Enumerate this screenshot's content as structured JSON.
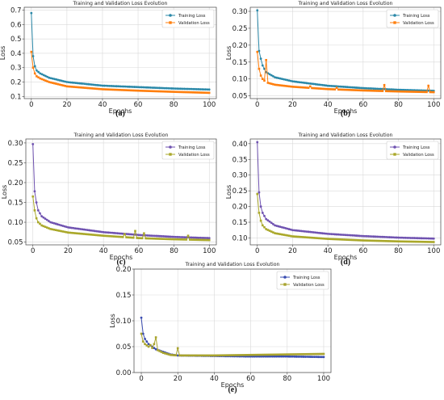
{
  "colors": {
    "train_blue": "#1f77b4",
    "train_teal": "#2a88a8",
    "val_orange": "#ff7f0e",
    "train_purple": "#6f52b0",
    "val_olive": "#aaa82a",
    "train_navy": "#3a4cb0",
    "val_olive2": "#a8a32e",
    "grid": "#d9d9d9"
  },
  "chart_data": [
    {
      "id": "a",
      "type": "line",
      "caption": "(a)",
      "title": "Training and Validation Loss Evolution",
      "xlabel": "Epochs",
      "ylabel": "Loss",
      "xlim": [
        -4,
        104
      ],
      "ylim": [
        0.085,
        0.72
      ],
      "xticks": [
        0,
        20,
        40,
        60,
        80,
        100
      ],
      "yticks": [
        0.1,
        0.2,
        0.3,
        0.4,
        0.5,
        0.6,
        0.7
      ],
      "yticklabels": [
        "0.1",
        "0.2",
        "0.3",
        "0.4",
        "0.5",
        "0.6",
        "0.7"
      ],
      "grid": true,
      "legend": "top-right",
      "series": [
        {
          "name": "Training Loss",
          "color": "#2a88a8",
          "marker": "circle",
          "points": [
            [
              0,
              0.68
            ],
            [
              1,
              0.38
            ],
            [
              2,
              0.31
            ],
            [
              3,
              0.28
            ],
            [
              5,
              0.26
            ],
            [
              10,
              0.23
            ],
            [
              20,
              0.2
            ],
            [
              40,
              0.175
            ],
            [
              60,
              0.165
            ],
            [
              80,
              0.155
            ],
            [
              100,
              0.148
            ]
          ]
        },
        {
          "name": "Validation Loss",
          "color": "#ff7f0e",
          "marker": "square",
          "points": [
            [
              0,
              0.41
            ],
            [
              1,
              0.3
            ],
            [
              2,
              0.26
            ],
            [
              3,
              0.24
            ],
            [
              5,
              0.225
            ],
            [
              10,
              0.2
            ],
            [
              20,
              0.17
            ],
            [
              40,
              0.15
            ],
            [
              60,
              0.14
            ],
            [
              80,
              0.132
            ],
            [
              100,
              0.125
            ]
          ]
        }
      ]
    },
    {
      "id": "b",
      "type": "line",
      "caption": "(b)",
      "title": "Training and Validation Loss Evolution",
      "xlabel": "Epochs",
      "ylabel": "Loss",
      "xlim": [
        -4,
        104
      ],
      "ylim": [
        0.042,
        0.312
      ],
      "xticks": [
        0,
        20,
        40,
        60,
        80,
        100
      ],
      "yticks": [
        0.05,
        0.1,
        0.15,
        0.2,
        0.25,
        0.3
      ],
      "yticklabels": [
        "0.05",
        "0.10",
        "0.15",
        "0.20",
        "0.25",
        "0.30"
      ],
      "grid": true,
      "legend": "top-right",
      "series": [
        {
          "name": "Training Loss",
          "color": "#2a88a8",
          "marker": "circle",
          "points": [
            [
              0,
              0.303
            ],
            [
              1,
              0.183
            ],
            [
              2,
              0.16
            ],
            [
              3,
              0.14
            ],
            [
              5,
              0.12
            ],
            [
              10,
              0.105
            ],
            [
              20,
              0.093
            ],
            [
              40,
              0.08
            ],
            [
              60,
              0.073
            ],
            [
              80,
              0.068
            ],
            [
              100,
              0.065
            ]
          ],
          "spikes": []
        },
        {
          "name": "Validation Loss",
          "color": "#ff7f0e",
          "marker": "square",
          "points": [
            [
              0,
              0.18
            ],
            [
              1,
              0.13
            ],
            [
              2,
              0.11
            ],
            [
              3,
              0.1
            ],
            [
              5,
              0.09
            ],
            [
              10,
              0.083
            ],
            [
              20,
              0.077
            ],
            [
              40,
              0.07
            ],
            [
              60,
              0.066
            ],
            [
              80,
              0.063
            ],
            [
              100,
              0.061
            ]
          ],
          "spikes": [
            [
              5,
              0.156
            ],
            [
              72,
              0.082
            ],
            [
              97,
              0.08
            ],
            [
              30,
              0.078
            ],
            [
              45,
              0.074
            ]
          ]
        }
      ]
    },
    {
      "id": "c",
      "type": "line",
      "caption": "(c)",
      "title": "Training and Validation Loss Evolution",
      "xlabel": "Epochs",
      "ylabel": "Loss",
      "xlim": [
        -4,
        104
      ],
      "ylim": [
        0.043,
        0.31
      ],
      "xticks": [
        0,
        20,
        40,
        60,
        80,
        100
      ],
      "yticks": [
        0.05,
        0.1,
        0.15,
        0.2,
        0.25,
        0.3
      ],
      "yticklabels": [
        "0.05",
        "0.10",
        "0.15",
        "0.20",
        "0.25",
        "0.30"
      ],
      "grid": true,
      "legend": "top-right",
      "series": [
        {
          "name": "Training Loss",
          "color": "#6f52b0",
          "marker": "circle",
          "points": [
            [
              0,
              0.297
            ],
            [
              1,
              0.178
            ],
            [
              2,
              0.15
            ],
            [
              3,
              0.13
            ],
            [
              5,
              0.115
            ],
            [
              10,
              0.1
            ],
            [
              20,
              0.087
            ],
            [
              40,
              0.075
            ],
            [
              60,
              0.068
            ],
            [
              80,
              0.063
            ],
            [
              100,
              0.06
            ]
          ],
          "spikes": []
        },
        {
          "name": "Validation Loss",
          "color": "#aaa82a",
          "marker": "square",
          "points": [
            [
              0,
              0.165
            ],
            [
              1,
              0.13
            ],
            [
              2,
              0.11
            ],
            [
              3,
              0.1
            ],
            [
              5,
              0.092
            ],
            [
              10,
              0.083
            ],
            [
              20,
              0.074
            ],
            [
              40,
              0.066
            ],
            [
              60,
              0.06
            ],
            [
              80,
              0.057
            ],
            [
              100,
              0.055
            ]
          ],
          "spikes": [
            [
              58,
              0.078
            ],
            [
              52,
              0.07
            ],
            [
              63,
              0.072
            ],
            [
              88,
              0.066
            ]
          ]
        }
      ]
    },
    {
      "id": "d",
      "type": "line",
      "caption": "(d)",
      "title": "Training and Validation Loss Evolution",
      "xlabel": "Epochs",
      "ylabel": "Loss",
      "xlim": [
        -4,
        104
      ],
      "ylim": [
        0.078,
        0.415
      ],
      "xticks": [
        0,
        20,
        40,
        60,
        80,
        100
      ],
      "yticks": [
        0.1,
        0.15,
        0.2,
        0.25,
        0.3,
        0.35,
        0.4
      ],
      "yticklabels": [
        "0.10",
        "0.15",
        "0.20",
        "0.25",
        "0.30",
        "0.35",
        "0.40"
      ],
      "grid": true,
      "legend": "top-right",
      "series": [
        {
          "name": "Training Loss",
          "color": "#6f52b0",
          "marker": "circle",
          "points": [
            [
              0,
              0.405
            ],
            [
              1,
              0.245
            ],
            [
              2,
              0.2
            ],
            [
              3,
              0.18
            ],
            [
              5,
              0.16
            ],
            [
              10,
              0.14
            ],
            [
              20,
              0.125
            ],
            [
              40,
              0.113
            ],
            [
              60,
              0.106
            ],
            [
              80,
              0.101
            ],
            [
              100,
              0.098
            ]
          ],
          "spikes": []
        },
        {
          "name": "Validation Loss",
          "color": "#aaa82a",
          "marker": "square",
          "points": [
            [
              0,
              0.24
            ],
            [
              1,
              0.18
            ],
            [
              2,
              0.155
            ],
            [
              3,
              0.14
            ],
            [
              5,
              0.128
            ],
            [
              10,
              0.115
            ],
            [
              20,
              0.105
            ],
            [
              40,
              0.097
            ],
            [
              60,
              0.092
            ],
            [
              80,
              0.089
            ],
            [
              100,
              0.087
            ]
          ],
          "spikes": []
        }
      ]
    },
    {
      "id": "e",
      "type": "line",
      "caption": "(e)",
      "title": "Training and Validation Loss Evolution",
      "xlabel": "Epochs",
      "ylabel": "Loss",
      "xlim": [
        -4,
        104
      ],
      "ylim": [
        0.0,
        0.2
      ],
      "xticks": [
        0,
        20,
        40,
        60,
        80,
        100
      ],
      "yticks": [
        0.0,
        0.05,
        0.1,
        0.15,
        0.2
      ],
      "yticklabels": [
        "0.00",
        "0.05",
        "0.10",
        "0.15",
        "0.20"
      ],
      "grid": true,
      "legend": "top-right",
      "series": [
        {
          "name": "Training Loss",
          "color": "#3a4cb0",
          "marker": "circle",
          "points": [
            [
              0,
              0.106
            ],
            [
              1,
              0.075
            ],
            [
              2,
              0.065
            ],
            [
              4,
              0.055
            ],
            [
              8,
              0.045
            ],
            [
              12,
              0.04
            ],
            [
              16,
              0.035
            ],
            [
              20,
              0.033
            ],
            [
              40,
              0.032
            ],
            [
              60,
              0.031
            ],
            [
              80,
              0.031
            ],
            [
              100,
              0.03
            ]
          ],
          "spikes": []
        },
        {
          "name": "Validation Loss",
          "color": "#a8a32e",
          "marker": "square",
          "points": [
            [
              0,
              0.075
            ],
            [
              1,
              0.06
            ],
            [
              2,
              0.055
            ],
            [
              4,
              0.05
            ],
            [
              8,
              0.045
            ],
            [
              12,
              0.038
            ],
            [
              16,
              0.034
            ],
            [
              20,
              0.033
            ],
            [
              40,
              0.033
            ],
            [
              60,
              0.034
            ],
            [
              80,
              0.035
            ],
            [
              100,
              0.036
            ]
          ],
          "spikes": [
            [
              8,
              0.068
            ],
            [
              20,
              0.047
            ],
            [
              7,
              0.055
            ],
            [
              5,
              0.053
            ]
          ]
        }
      ]
    }
  ]
}
